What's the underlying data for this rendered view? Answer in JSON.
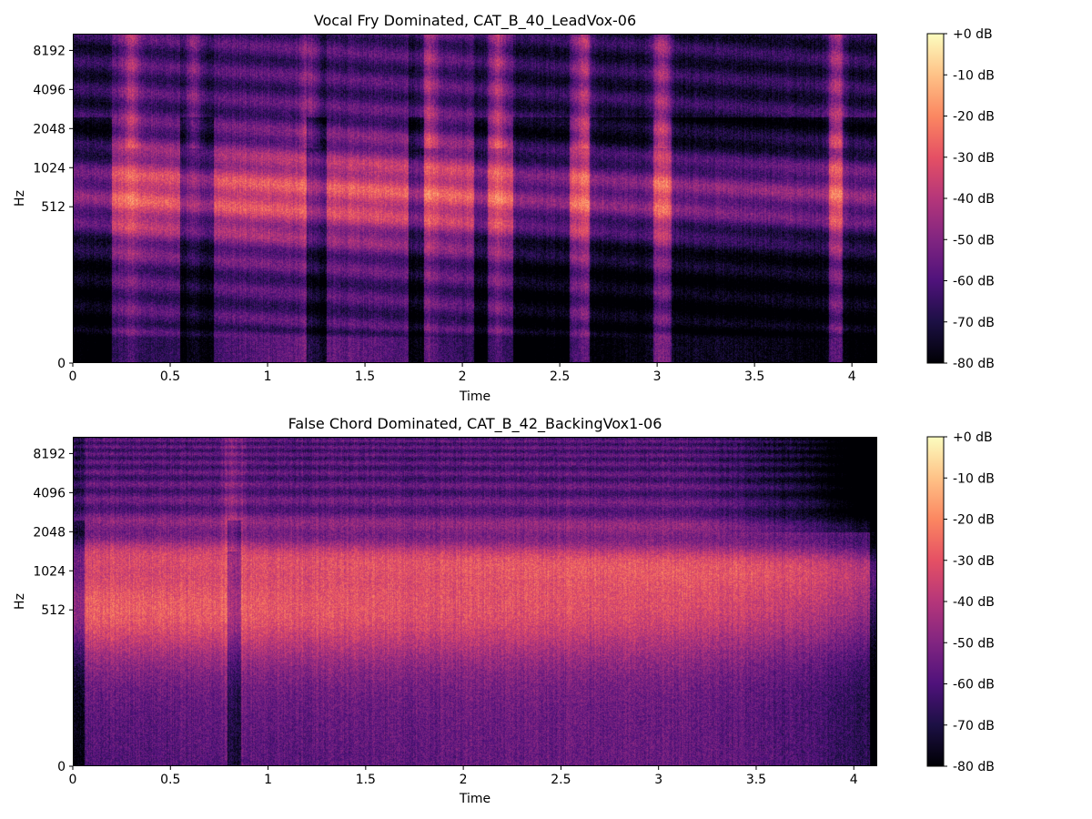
{
  "chart_data": [
    {
      "type": "heatmap",
      "title": "Vocal Fry Dominated, CAT_B_40_LeadVox-06",
      "xlabel": "Time",
      "ylabel": "Hz",
      "x_ticks": [
        0,
        0.5,
        1,
        1.5,
        2,
        2.5,
        3,
        3.5,
        4
      ],
      "x_tick_labels": [
        "0",
        "0.5",
        "1",
        "1.5",
        "2",
        "2.5",
        "3",
        "3.5",
        "4"
      ],
      "xlim": [
        0,
        4.13
      ],
      "y_scale": "log",
      "y_ticks": [
        0,
        512,
        1024,
        2048,
        4096,
        8192
      ],
      "y_tick_labels": [
        "0",
        "512",
        "1024",
        "2048",
        "4096",
        "8192"
      ],
      "ylim": [
        0,
        11025
      ],
      "colormap": "magma",
      "colorbar": {
        "label_format": "%+2.0f dB",
        "range": [
          -80,
          0
        ],
        "ticks": [
          0,
          -10,
          -20,
          -30,
          -40,
          -50,
          -60,
          -70,
          -80
        ],
        "tick_labels": [
          "+0 dB",
          "-10 dB",
          "-20 dB",
          "-30 dB",
          "-40 dB",
          "-50 dB",
          "-60 dB",
          "-70 dB",
          "-80 dB"
        ]
      },
      "gaps_s": [
        0.0,
        0.2,
        0.55,
        0.72,
        1.2,
        1.3,
        1.72,
        1.8,
        2.06,
        2.13,
        2.26,
        2.55,
        2.65,
        2.98,
        3.07,
        3.88,
        3.95,
        4.13
      ],
      "bursts_s": [
        0.3,
        0.62,
        1.22,
        1.83,
        2.18,
        2.62,
        3.02,
        3.92
      ]
    },
    {
      "type": "heatmap",
      "title": "False Chord Dominated, CAT_B_42_BackingVox1-06",
      "xlabel": "Time",
      "ylabel": "Hz",
      "x_ticks": [
        0,
        0.5,
        1,
        1.5,
        2,
        2.5,
        3,
        3.5,
        4
      ],
      "x_tick_labels": [
        "0",
        "0.5",
        "1",
        "1.5",
        "2",
        "2.5",
        "3",
        "3.5",
        "4"
      ],
      "xlim": [
        0,
        4.12
      ],
      "y_scale": "log",
      "y_ticks": [
        0,
        512,
        1024,
        2048,
        4096,
        8192
      ],
      "y_tick_labels": [
        "0",
        "512",
        "1024",
        "2048",
        "4096",
        "8192"
      ],
      "ylim": [
        0,
        11025
      ],
      "colormap": "magma",
      "colorbar": {
        "label_format": "%+2.0f dB",
        "range": [
          -80,
          0
        ],
        "ticks": [
          0,
          -10,
          -20,
          -30,
          -40,
          -50,
          -60,
          -70,
          -80
        ],
        "tick_labels": [
          "+0 dB",
          "-10 dB",
          "-20 dB",
          "-30 dB",
          "-40 dB",
          "-50 dB",
          "-60 dB",
          "-70 dB",
          "-80 dB"
        ]
      },
      "gaps_s": [
        0.0,
        0.06,
        0.79,
        0.86,
        4.08,
        4.12
      ],
      "bursts_s": [
        0.82
      ]
    }
  ]
}
